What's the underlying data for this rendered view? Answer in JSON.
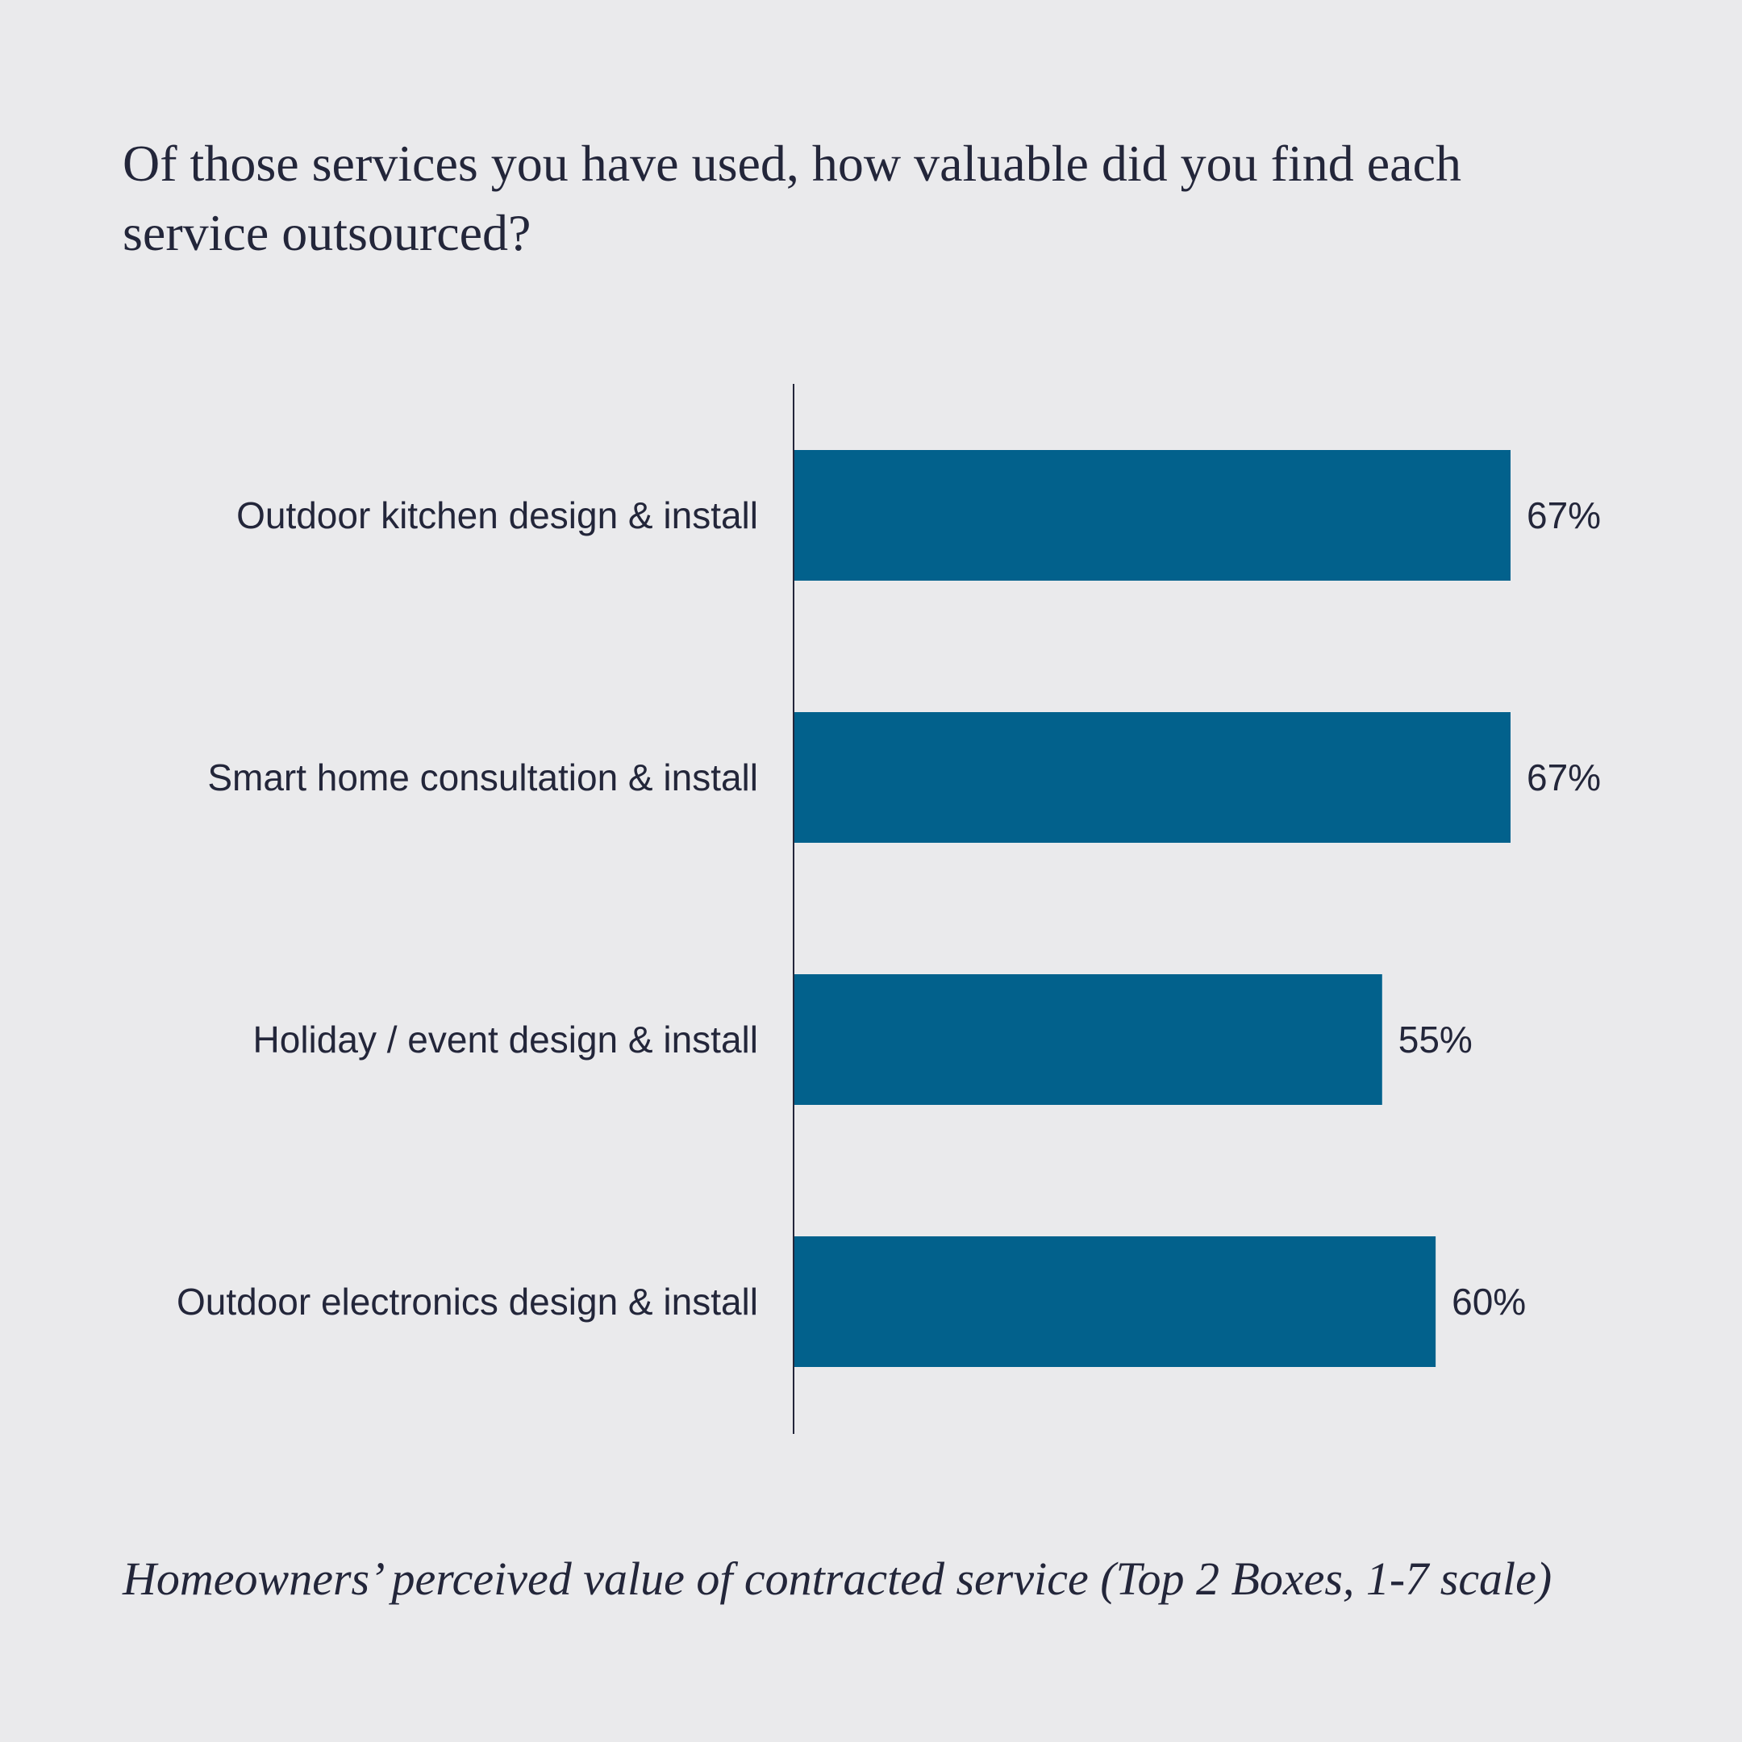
{
  "title": "Of those services you have used, how valuable did you find each service outsourced?",
  "footnote": "Homeowners’ perceived value of contracted service (Top 2 Boxes, 1-7 scale)",
  "colors": {
    "background": "#eaeaec",
    "bar": "#02618c",
    "text": "#23263a",
    "axis": "#23263a"
  },
  "chart_data": {
    "type": "bar",
    "orientation": "horizontal",
    "categories": [
      "Outdoor kitchen design & install",
      "Smart home consultation & install",
      "Holiday / event design & install",
      "Outdoor electronics design & install"
    ],
    "values": [
      67,
      67,
      55,
      60
    ],
    "value_labels": [
      "67%",
      "67%",
      "55%",
      "60%"
    ],
    "unit": "%",
    "xlim": [
      0,
      100
    ],
    "grid": false,
    "legend": "none"
  }
}
